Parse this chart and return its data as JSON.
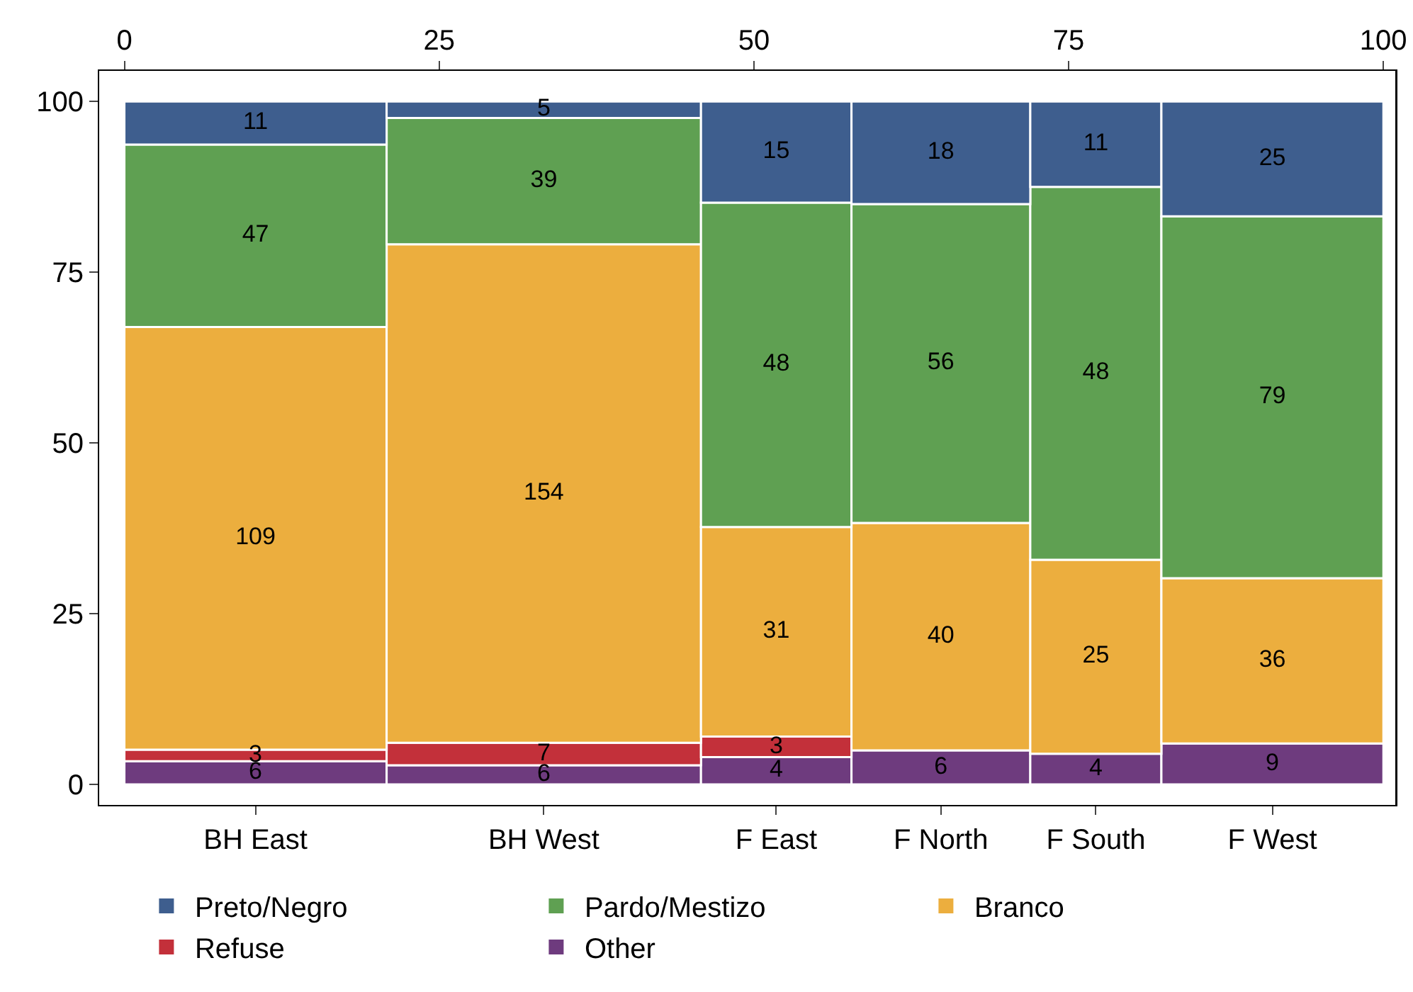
{
  "chart_data": {
    "type": "bar",
    "categories": [
      "BH East",
      "BH West",
      "F East",
      "F North",
      "F South",
      "F West"
    ],
    "series": [
      {
        "name": "Other",
        "color": "#6e3b7e",
        "values": [
          3.4,
          2.8,
          4.0,
          5.0,
          4.5,
          6.0
        ]
      },
      {
        "name": "Refuse",
        "color": "#c3303a",
        "values": [
          1.7,
          3.3,
          3.0,
          null,
          null,
          null
        ]
      },
      {
        "name": "Branco",
        "color": "#ecae3e",
        "values": [
          61.9,
          73.0,
          30.7,
          33.3,
          28.4,
          24.2
        ]
      },
      {
        "name": "Pardo/Mestizo",
        "color": "#5fa052",
        "values": [
          26.7,
          18.5,
          47.5,
          46.7,
          54.6,
          53.0
        ]
      },
      {
        "name": "Preto/Negro",
        "color": "#3e5e8e",
        "values": [
          6.3,
          2.4,
          14.8,
          15.0,
          12.5,
          16.8
        ]
      }
    ],
    "annotations": [
      "6",
      "6",
      "4",
      "6",
      "4",
      "9",
      "3",
      "7",
      "3",
      "109",
      "154",
      "31",
      "40",
      "25",
      "36",
      "47",
      "39",
      "48",
      "56",
      "48",
      "79",
      "11",
      "5",
      "15",
      "18",
      "11",
      "25"
    ],
    "stacked": true,
    "x2lim": [
      -2,
      101
    ],
    "x2ticks": [
      0,
      25,
      50,
      75,
      100
    ],
    "ylim": [
      -3,
      104.5
    ],
    "yticks": [
      0,
      25,
      50,
      75,
      100
    ],
    "legend": "bottom"
  }
}
